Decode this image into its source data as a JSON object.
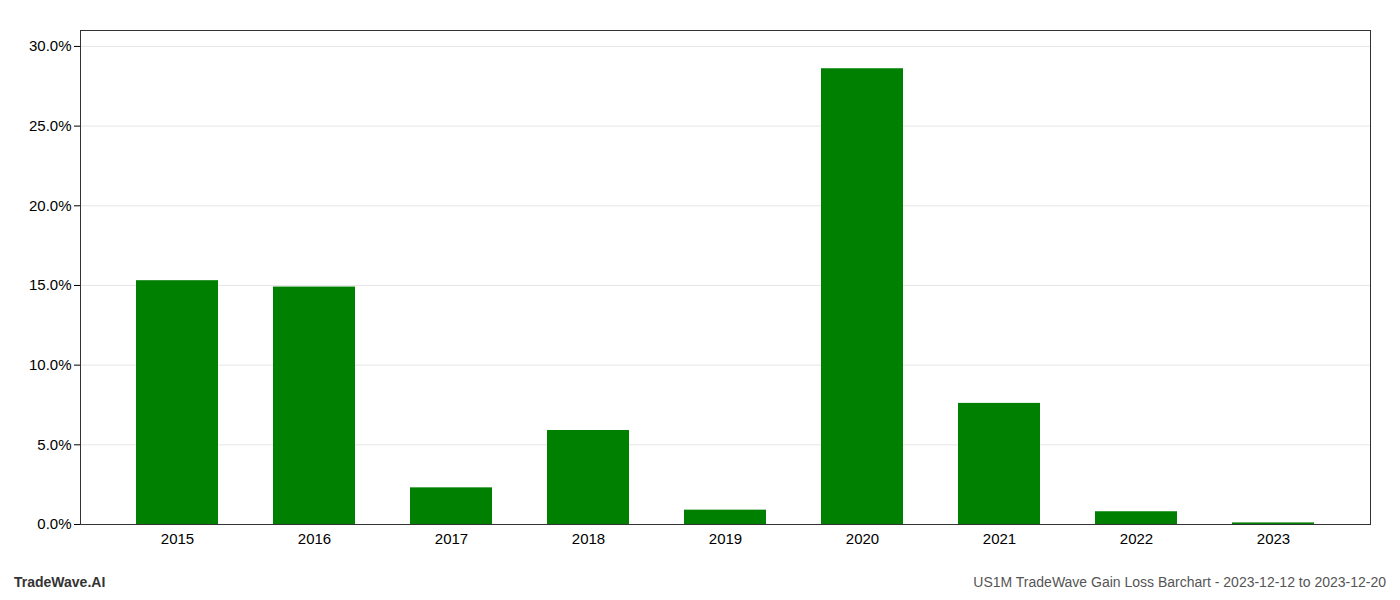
{
  "chart_data": {
    "type": "bar",
    "categories": [
      "2015",
      "2016",
      "2017",
      "2018",
      "2019",
      "2020",
      "2021",
      "2022",
      "2023"
    ],
    "values": [
      0.153,
      0.149,
      0.023,
      0.059,
      0.009,
      0.286,
      0.076,
      0.008,
      0.001
    ],
    "color": "#008000",
    "ylim": [
      0,
      0.31
    ],
    "yticks": [
      {
        "value": 0.0,
        "label": "0.0%"
      },
      {
        "value": 0.05,
        "label": "5.0%"
      },
      {
        "value": 0.1,
        "label": "10.0%"
      },
      {
        "value": 0.15,
        "label": "15.0%"
      },
      {
        "value": 0.2,
        "label": "20.0%"
      },
      {
        "value": 0.25,
        "label": "25.0%"
      },
      {
        "value": 0.3,
        "label": "30.0%"
      }
    ],
    "grid": true,
    "annotations": [
      "TradeWave.AI",
      "US1M TradeWave Gain Loss Barchart - 2023-12-12 to 2023-12-20"
    ]
  }
}
